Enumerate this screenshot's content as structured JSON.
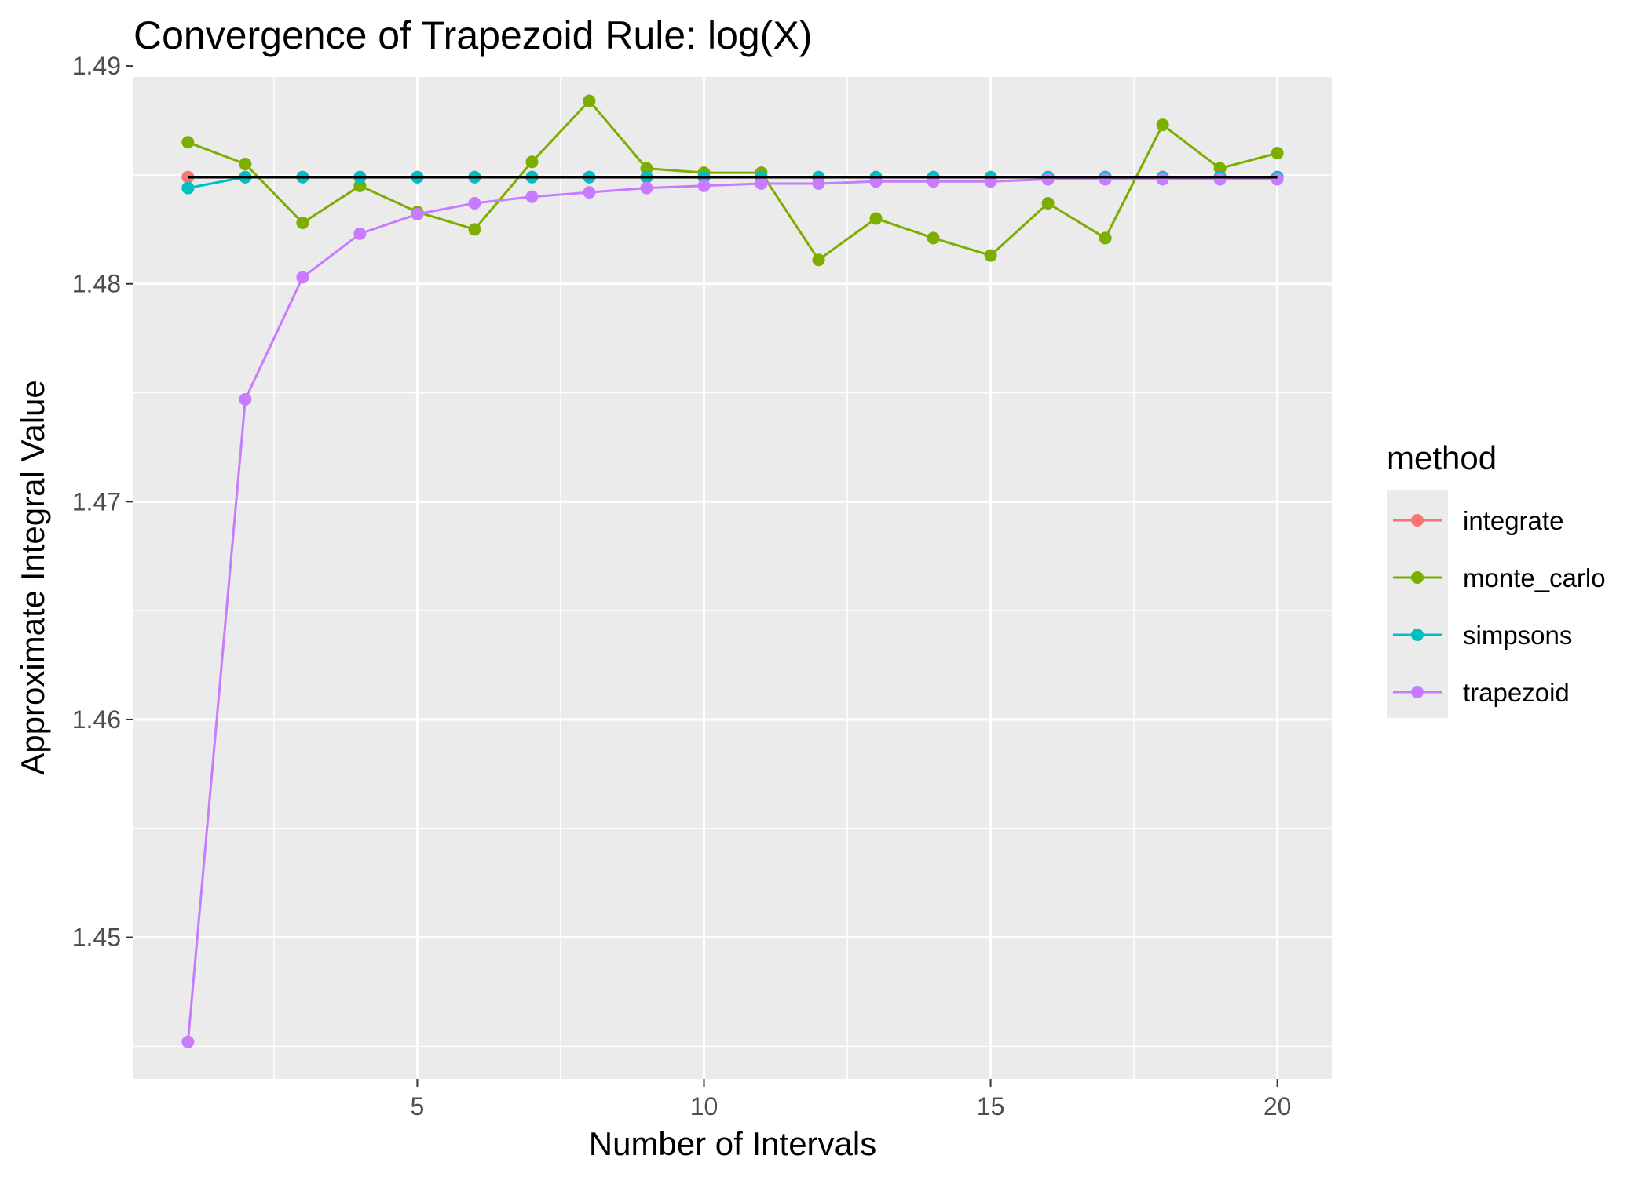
{
  "chart_data": {
    "type": "line",
    "title": "Convergence of Trapezoid Rule: log(X)",
    "xlabel": "Number of Intervals",
    "ylabel": "Approximate Integral Value",
    "xlim": [
      0.05,
      20.95
    ],
    "ylim": [
      1.4435,
      1.4895
    ],
    "x_ticks": [
      5,
      10,
      15,
      20
    ],
    "x_tick_labels": [
      "5",
      "10",
      "15",
      "20"
    ],
    "y_ticks": [
      1.45,
      1.46,
      1.47,
      1.48,
      1.49
    ],
    "y_tick_labels": [
      "1.45",
      "1.46",
      "1.47",
      "1.48",
      "1.49"
    ],
    "grid": true,
    "legend": {
      "title": "method",
      "position": "right"
    },
    "x": [
      1,
      2,
      3,
      4,
      5,
      6,
      7,
      8,
      9,
      10,
      11,
      12,
      13,
      14,
      15,
      16,
      17,
      18,
      19,
      20
    ],
    "series": [
      {
        "name": "integrate",
        "color": "#F8766D",
        "values": [
          1.4849,
          1.4849,
          1.4849,
          1.4849,
          1.4849,
          1.4849,
          1.4849,
          1.4849,
          1.4849,
          1.4849,
          1.4849,
          1.4849,
          1.4849,
          1.4849,
          1.4849,
          1.4849,
          1.4849,
          1.4849,
          1.4849,
          1.4849
        ]
      },
      {
        "name": "monte_carlo",
        "color": "#7CAE00",
        "values": [
          1.4865,
          1.4855,
          1.4828,
          1.4845,
          1.4833,
          1.4825,
          1.4856,
          1.4884,
          1.4853,
          1.4851,
          1.4851,
          1.4811,
          1.483,
          1.4821,
          1.4813,
          1.4837,
          1.4821,
          1.4873,
          1.4853,
          1.486
        ]
      },
      {
        "name": "simpsons",
        "color": "#00BFC4",
        "values": [
          1.4844,
          1.4849,
          1.4849,
          1.4849,
          1.4849,
          1.4849,
          1.4849,
          1.4849,
          1.4849,
          1.4849,
          1.4849,
          1.4849,
          1.4849,
          1.4849,
          1.4849,
          1.4849,
          1.4849,
          1.4849,
          1.4849,
          1.4849
        ]
      },
      {
        "name": "trapezoid",
        "color": "#C77CFF",
        "values": [
          1.4452,
          1.4747,
          1.4803,
          1.4823,
          1.4832,
          1.4837,
          1.484,
          1.4842,
          1.4844,
          1.4845,
          1.4846,
          1.4846,
          1.4847,
          1.4847,
          1.4847,
          1.4848,
          1.4848,
          1.4848,
          1.4848,
          1.4848
        ]
      }
    ],
    "reference_line": {
      "value": 1.4849,
      "color": "#000000"
    }
  }
}
